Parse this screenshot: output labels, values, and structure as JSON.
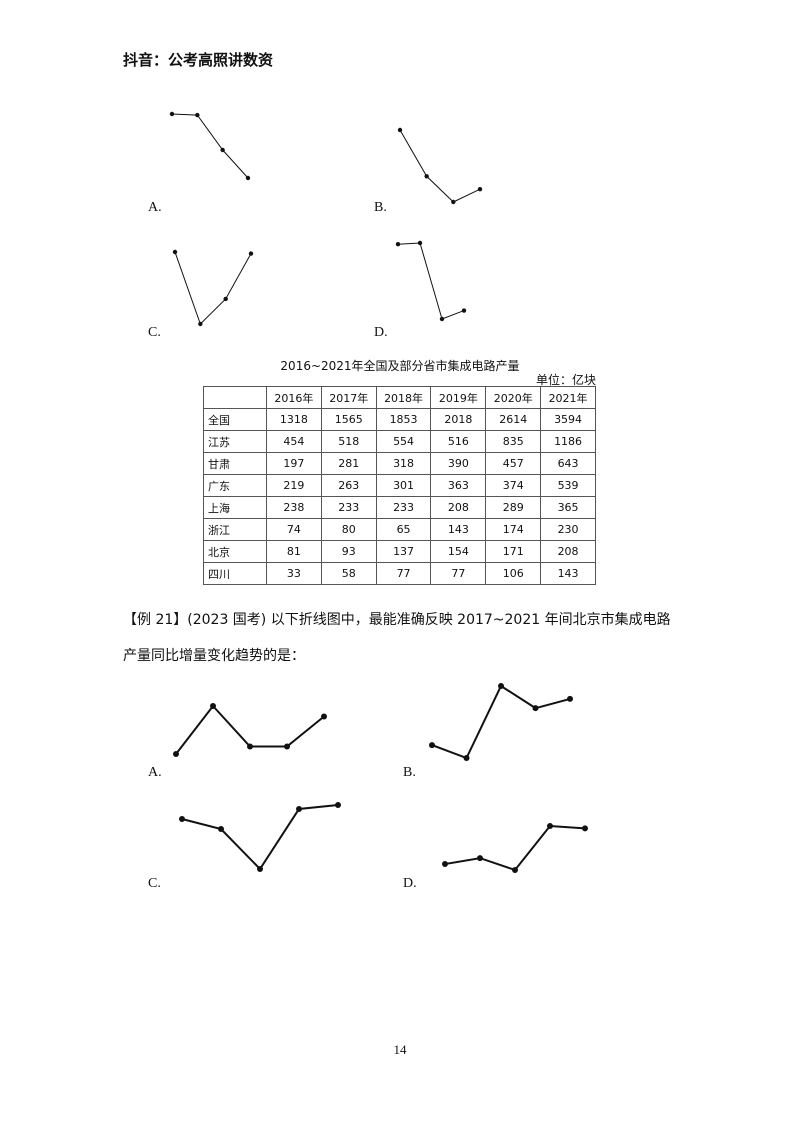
{
  "header": {
    "text": "抖音：公考高照讲数资"
  },
  "top_options": [
    {
      "label": "A.",
      "points": [
        [
          0,
          0
        ],
        [
          1,
          0.04
        ],
        [
          2,
          1.35
        ],
        [
          3,
          2.4
        ]
      ]
    },
    {
      "label": "B.",
      "points": [
        [
          0,
          0
        ],
        [
          1,
          1.8
        ],
        [
          2,
          2.8
        ],
        [
          3,
          2.3
        ]
      ]
    },
    {
      "label": "C.",
      "points": [
        [
          0,
          0
        ],
        [
          1,
          2.3
        ],
        [
          2,
          1.5
        ],
        [
          3,
          0.05
        ]
      ]
    },
    {
      "label": "D.",
      "points": [
        [
          0,
          0.05
        ],
        [
          1,
          0
        ],
        [
          2,
          3.15
        ],
        [
          3,
          2.8
        ]
      ]
    }
  ],
  "table": {
    "title": "2016~2021年全国及部分省市集成电路产量",
    "unit": "单位：亿块",
    "headers": [
      "",
      "2016年",
      "2017年",
      "2018年",
      "2019年",
      "2020年",
      "2021年"
    ],
    "rows": [
      [
        "全国",
        "1318",
        "1565",
        "1853",
        "2018",
        "2614",
        "3594"
      ],
      [
        "江苏",
        "454",
        "518",
        "554",
        "516",
        "835",
        "1186"
      ],
      [
        "甘肃",
        "197",
        "281",
        "318",
        "390",
        "457",
        "643"
      ],
      [
        "广东",
        "219",
        "263",
        "301",
        "363",
        "374",
        "539"
      ],
      [
        "上海",
        "238",
        "233",
        "233",
        "208",
        "289",
        "365"
      ],
      [
        "浙江",
        "74",
        "80",
        "65",
        "143",
        "174",
        "230"
      ],
      [
        "北京",
        "81",
        "93",
        "137",
        "154",
        "171",
        "208"
      ],
      [
        "四川",
        "33",
        "58",
        "77",
        "77",
        "106",
        "143"
      ]
    ]
  },
  "question": {
    "text": "【例 21】(2023 国考) 以下折线图中，最能准确反映 2017~2021 年间北京市集成电路产量同比增量变化趋势的是："
  },
  "bottom_options": [
    {
      "label": "A.",
      "points": [
        [
          0,
          12
        ],
        [
          1,
          44
        ],
        [
          2,
          17
        ],
        [
          3,
          17
        ],
        [
          4,
          37
        ]
      ]
    },
    {
      "label": "B.",
      "points": [
        [
          0,
          12
        ],
        [
          1,
          5
        ],
        [
          2,
          44
        ],
        [
          3,
          32
        ],
        [
          4,
          37
        ]
      ]
    },
    {
      "label": "C.",
      "points": [
        [
          0,
          37
        ],
        [
          1,
          32
        ],
        [
          2,
          12
        ],
        [
          3,
          42
        ],
        [
          4,
          44
        ]
      ]
    },
    {
      "label": "D.",
      "points": [
        [
          0,
          12
        ],
        [
          1,
          17
        ],
        [
          2,
          7
        ],
        [
          3,
          44
        ],
        [
          4,
          42
        ]
      ]
    }
  ],
  "page_number": "14"
}
